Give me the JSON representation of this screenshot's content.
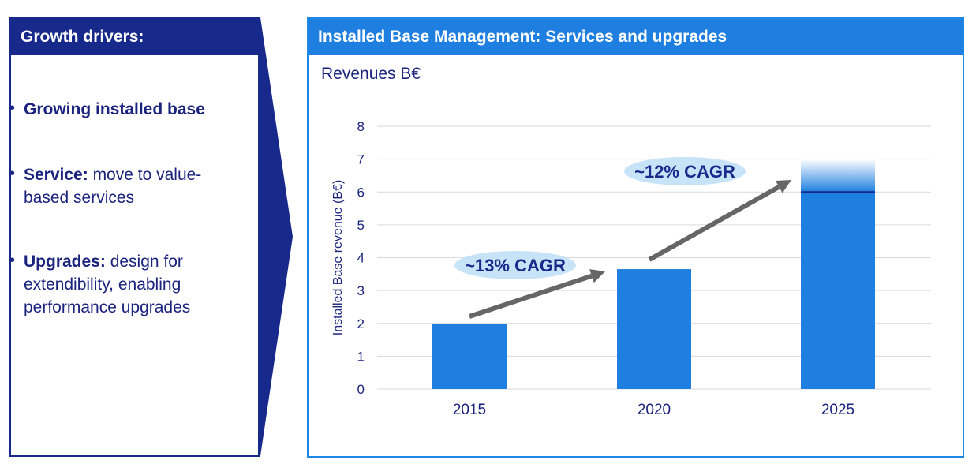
{
  "left": {
    "title": "Growth drivers:",
    "items": [
      {
        "bold": "Growing installed base",
        "rest": ""
      },
      {
        "bold": "Service:",
        "rest": " move to value-",
        "rest2": "based services"
      },
      {
        "bold": "Upgrades:",
        "rest": " design for",
        "rest2": "extendibility, enabling",
        "rest3": "performance upgrades"
      }
    ]
  },
  "right": {
    "title": "Installed Base Management: Services and upgrades",
    "subtitle": "Revenues B€"
  },
  "colors": {
    "navy": "#172a8c",
    "bar": "#1f7fe0",
    "bubble": "#c7e3f7",
    "arrow": "#666666",
    "grid": "#d9d9d9"
  },
  "chart_data": {
    "type": "bar",
    "categories": [
      "2015",
      "2020",
      "2025"
    ],
    "values": [
      1.97,
      3.65,
      6.0
    ],
    "projection_top": 7.0,
    "ylabel": "Installed Base revenue (B€)",
    "ylim": [
      0,
      8
    ],
    "yticks": [
      0,
      1,
      2,
      3,
      4,
      5,
      6,
      7,
      8
    ],
    "grid": true,
    "annotations": [
      {
        "text": "~13% CAGR",
        "from": "2015",
        "to": "2020"
      },
      {
        "text": "~12% CAGR",
        "from": "2020",
        "to": "2025"
      }
    ]
  }
}
